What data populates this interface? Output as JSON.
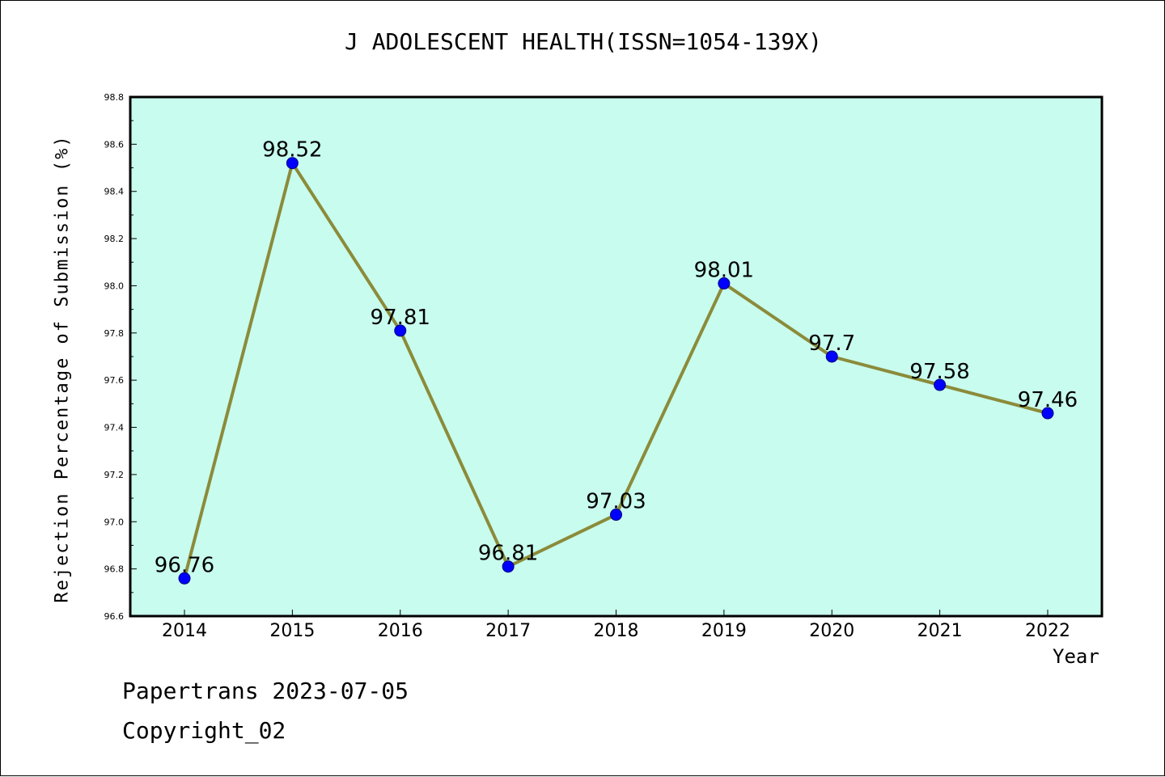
{
  "chart_data": {
    "type": "line",
    "title": "J ADOLESCENT HEALTH(ISSN=1054-139X)",
    "xlabel": "Year",
    "ylabel": "Rejection Percentage of Submission (%)",
    "categories": [
      "2014",
      "2015",
      "2016",
      "2017",
      "2018",
      "2019",
      "2020",
      "2021",
      "2022"
    ],
    "series": [
      {
        "values": [
          96.76,
          98.52,
          97.81,
          96.81,
          97.03,
          98.01,
          97.7,
          97.58,
          97.46
        ],
        "data_labels": [
          "96.76",
          "98.52",
          "97.81",
          "96.81",
          "97.03",
          "98.01",
          "97.7",
          "97.58",
          "97.46"
        ]
      }
    ],
    "ylim": [
      96.6,
      98.8
    ],
    "yticks": [
      "96.6",
      "96.8",
      "97.0",
      "97.2",
      "97.4",
      "97.6",
      "97.8",
      "98.0",
      "98.2",
      "98.4",
      "98.6",
      "98.8"
    ],
    "grid": false,
    "colors": {
      "plot_background": "#c8fcee",
      "line": "#8b8b3a",
      "marker": "#0000ff"
    }
  },
  "footer": {
    "line1": "Papertrans 2023-07-05",
    "line2": "Copyright_02"
  }
}
